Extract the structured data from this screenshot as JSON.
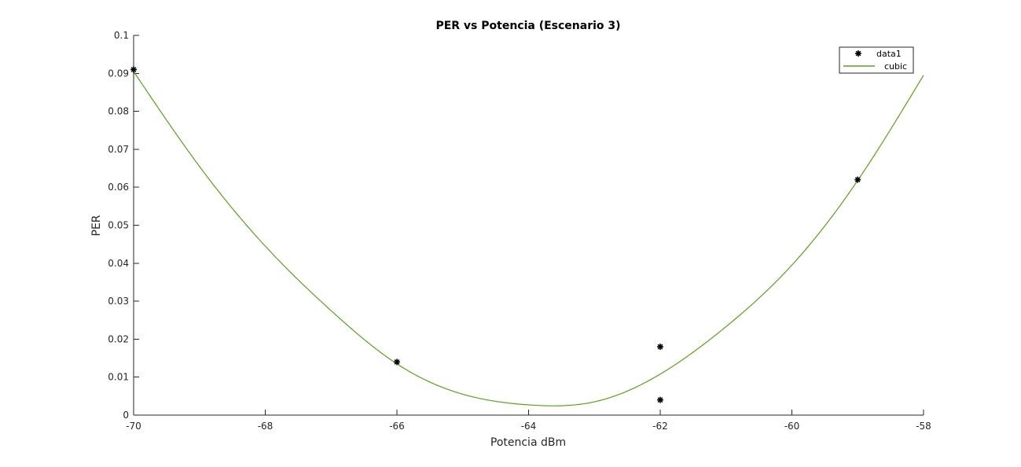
{
  "chart_data": {
    "type": "scatter",
    "title": "PER vs Potencia (Escenario 3)",
    "xlabel": "Potencia dBm",
    "ylabel": "PER",
    "xlim": [
      -70,
      -58
    ],
    "ylim": [
      0,
      0.1
    ],
    "x_ticks": [
      -70,
      -68,
      -66,
      -64,
      -62,
      -60,
      -58
    ],
    "y_ticks": [
      0,
      0.01,
      0.02,
      0.03,
      0.04,
      0.05,
      0.06,
      0.07,
      0.08,
      0.09,
      0.1
    ],
    "grid": false,
    "legend_position": "top-right",
    "series": [
      {
        "name": "data1",
        "type": "scatter",
        "marker": "asterisk",
        "color": "#000000",
        "x": [
          -70,
          -66,
          -62,
          -62,
          -59
        ],
        "y": [
          0.091,
          0.014,
          0.018,
          0.004,
          0.062
        ]
      },
      {
        "name": "cubic",
        "type": "line",
        "color": "#5aa11e",
        "x": [
          -70,
          -69,
          -68,
          -67,
          -66,
          -65,
          -64,
          -63,
          -62,
          -61,
          -60,
          -59,
          -58
        ],
        "y": [
          0.0905,
          0.0655,
          0.0445,
          0.0275,
          0.0135,
          0.0055,
          0.0027,
          0.0035,
          0.0108,
          0.0233,
          0.0395,
          0.0618,
          0.0895
        ]
      }
    ]
  }
}
